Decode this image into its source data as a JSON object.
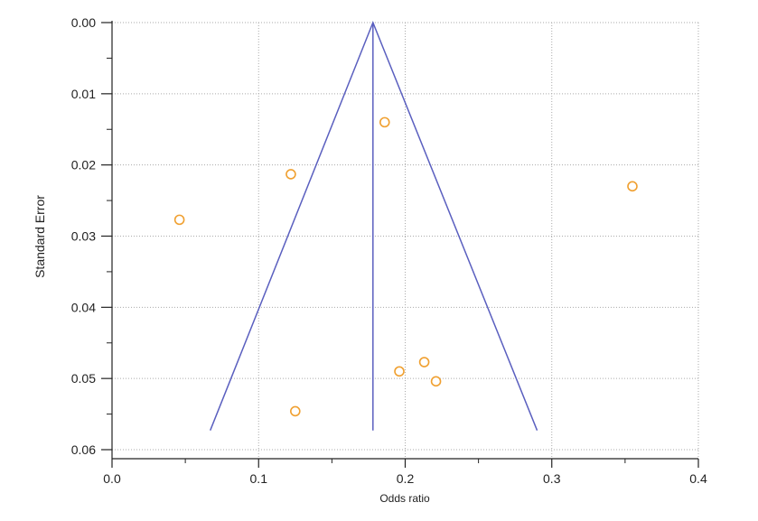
{
  "chart_data": {
    "type": "scatter",
    "title": "",
    "xlabel": "Odds ratio",
    "ylabel": "Standard Error",
    "xlim": [
      0,
      0.4
    ],
    "ylim": [
      0,
      0.061
    ],
    "y_inverted": true,
    "grid": true,
    "x_ticks": [
      0,
      0.1,
      0.2,
      0.3,
      0.4
    ],
    "x_tick_labels": [
      "0.0",
      "0.1",
      "0.2",
      "0.3",
      "0.4"
    ],
    "y_ticks": [
      0,
      0.01,
      0.02,
      0.03,
      0.04,
      0.05,
      0.06
    ],
    "y_tick_labels": [
      "0.00",
      "0.01",
      "0.02",
      "0.03",
      "0.04",
      "0.05",
      "0.06"
    ],
    "points": [
      {
        "x": 0.046,
        "y": 0.0277
      },
      {
        "x": 0.122,
        "y": 0.0213
      },
      {
        "x": 0.186,
        "y": 0.014
      },
      {
        "x": 0.125,
        "y": 0.0546
      },
      {
        "x": 0.196,
        "y": 0.049
      },
      {
        "x": 0.213,
        "y": 0.0477
      },
      {
        "x": 0.221,
        "y": 0.0504
      },
      {
        "x": 0.355,
        "y": 0.023
      }
    ],
    "pooled_estimate": 0.178,
    "funnel": {
      "apex": {
        "x": 0.178,
        "y": 0
      },
      "left": {
        "x": 0.067,
        "y": 0.0573
      },
      "right": {
        "x": 0.29,
        "y": 0.0573
      }
    },
    "colors": {
      "points": "#f0a030",
      "funnel": "#5a5fbf",
      "grid": "#aaaaaa",
      "axis": "#222222"
    }
  }
}
